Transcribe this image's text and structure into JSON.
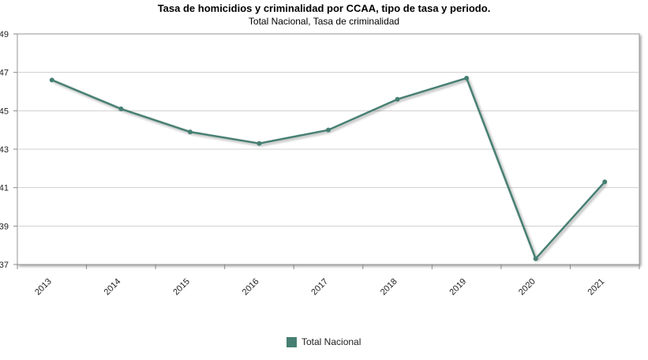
{
  "chart_data": {
    "type": "line",
    "title": "Tasa de homicidios y criminalidad por CCAA, tipo de tasa y periodo.",
    "subtitle": "Total Nacional, Tasa de criminalidad",
    "xlabel": "",
    "ylabel": "",
    "categories": [
      "2013",
      "2014",
      "2015",
      "2016",
      "2017",
      "2018",
      "2019",
      "2020",
      "2021"
    ],
    "series": [
      {
        "name": "Total Nacional",
        "color": "#467f73",
        "values": [
          46.6,
          45.1,
          43.9,
          43.3,
          44.0,
          45.6,
          46.7,
          37.3,
          41.3
        ]
      }
    ],
    "ylim": [
      37,
      49
    ],
    "yticks": [
      "37",
      "39",
      "41",
      "43",
      "45",
      "47",
      "49"
    ],
    "grid": true,
    "legend_position": "bottom"
  }
}
